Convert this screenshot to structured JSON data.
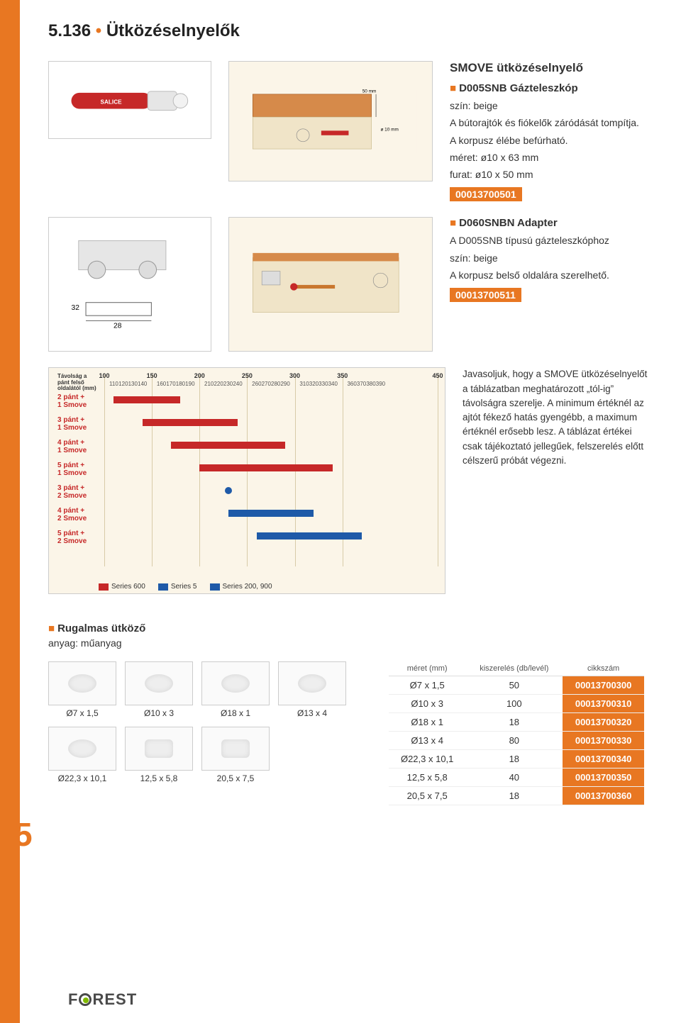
{
  "page": {
    "number_prefix": "5.136",
    "title": "Ütközéselnyelők",
    "side_number": "5",
    "side_color": "#e87722",
    "background": "#ffffff"
  },
  "smove": {
    "heading": "SMOVE ütközéselnyelő",
    "d005": {
      "code_name": "D005SNB Gázteleszkóp",
      "lines": [
        "szín: beige",
        "A bútorajtók és fiókelők záródását tompítja.",
        "A korpusz élébe befúrható.",
        "méret: ø10 x 63 mm",
        "furat: ø10 x 50 mm"
      ],
      "code": "00013700501"
    },
    "d060": {
      "code_name": "D060SNBN Adapter",
      "lines": [
        "A D005SNB típusú gázteleszkóphoz",
        "szín: beige",
        "A korpusz belső oldalára szerelhető."
      ],
      "code": "00013700511"
    }
  },
  "chart": {
    "background": "#fbf5e8",
    "grid_color": "#d8cba8",
    "axis_title": "Távolság a pánt felső oldalától (mm)",
    "x_major": [
      100,
      150,
      200,
      250,
      300,
      350,
      450
    ],
    "x_minor": [
      110,
      120,
      130,
      140,
      160,
      170,
      180,
      190,
      210,
      220,
      230,
      240,
      260,
      270,
      280,
      290,
      310,
      320,
      330,
      340,
      360,
      370,
      380,
      390
    ],
    "x_min": 100,
    "x_max": 450,
    "rows": [
      {
        "label": "2 pánt +\n1 Smove",
        "series": "600",
        "from": 110,
        "to": 180
      },
      {
        "label": "3 pánt +\n1 Smove",
        "series": "600",
        "from": 140,
        "to": 240
      },
      {
        "label": "4 pánt +\n1 Smove",
        "series": "600",
        "from": 170,
        "to": 290
      },
      {
        "label": "5 pánt +\n1 Smove",
        "series": "600",
        "from": 200,
        "to": 340
      },
      {
        "label": "3 pánt +\n2 Smove",
        "series": "dot5",
        "from": 230,
        "to": 230
      },
      {
        "label": "4 pánt +\n2 Smove",
        "series": "200",
        "from": 230,
        "to": 320
      },
      {
        "label": "5 pánt +\n2 Smove",
        "series": "200",
        "from": 260,
        "to": 370
      }
    ],
    "series_colors": {
      "600": "#c62828",
      "5": "#1e5aa8",
      "200": "#1e5aa8",
      "dot5": "#1e5aa8"
    },
    "legend": [
      {
        "label": "Series 600",
        "color": "#c62828"
      },
      {
        "label": "Series 5",
        "color": "#1e5aa8"
      },
      {
        "label": "Series 200, 900",
        "color": "#1e5aa8"
      }
    ],
    "side_text": "Javasoljuk, hogy a SMOVE ütközéselnyelőt a táblázatban meghatározott „tól-ig” távolságra szerelje. A minimum értéknél az ajtót fékező hatás gyengébb, a maximum értéknél erősebb lesz. A táblázat értékei csak tájékoztató jellegűek, felszerelés előtt célszerű próbát végezni."
  },
  "rugalmas": {
    "title": "Rugalmas ütköző",
    "anyag": "anyag: műanyag",
    "parts": [
      "Ø7 x 1,5",
      "Ø10 x 3",
      "Ø18 x 1",
      "Ø13 x 4",
      "Ø22,3 x 10,1",
      "12,5 x 5,8",
      "20,5 x 7,5"
    ],
    "table": {
      "headers": [
        "méret (mm)",
        "kiszerelés (db/levél)",
        "cikkszám"
      ],
      "rows": [
        {
          "size": "Ø7 x 1,5",
          "qty": "50",
          "code": "00013700300"
        },
        {
          "size": "Ø10 x 3",
          "qty": "100",
          "code": "00013700310"
        },
        {
          "size": "Ø18 x 1",
          "qty": "18",
          "code": "00013700320"
        },
        {
          "size": "Ø13 x 4",
          "qty": "80",
          "code": "00013700330"
        },
        {
          "size": "Ø22,3 x 10,1",
          "qty": "18",
          "code": "00013700340"
        },
        {
          "size": "12,5 x 5,8",
          "qty": "40",
          "code": "00013700350"
        },
        {
          "size": "20,5 x 7,5",
          "qty": "18",
          "code": "00013700360"
        }
      ]
    }
  },
  "footer": {
    "brand": "FOREST"
  }
}
